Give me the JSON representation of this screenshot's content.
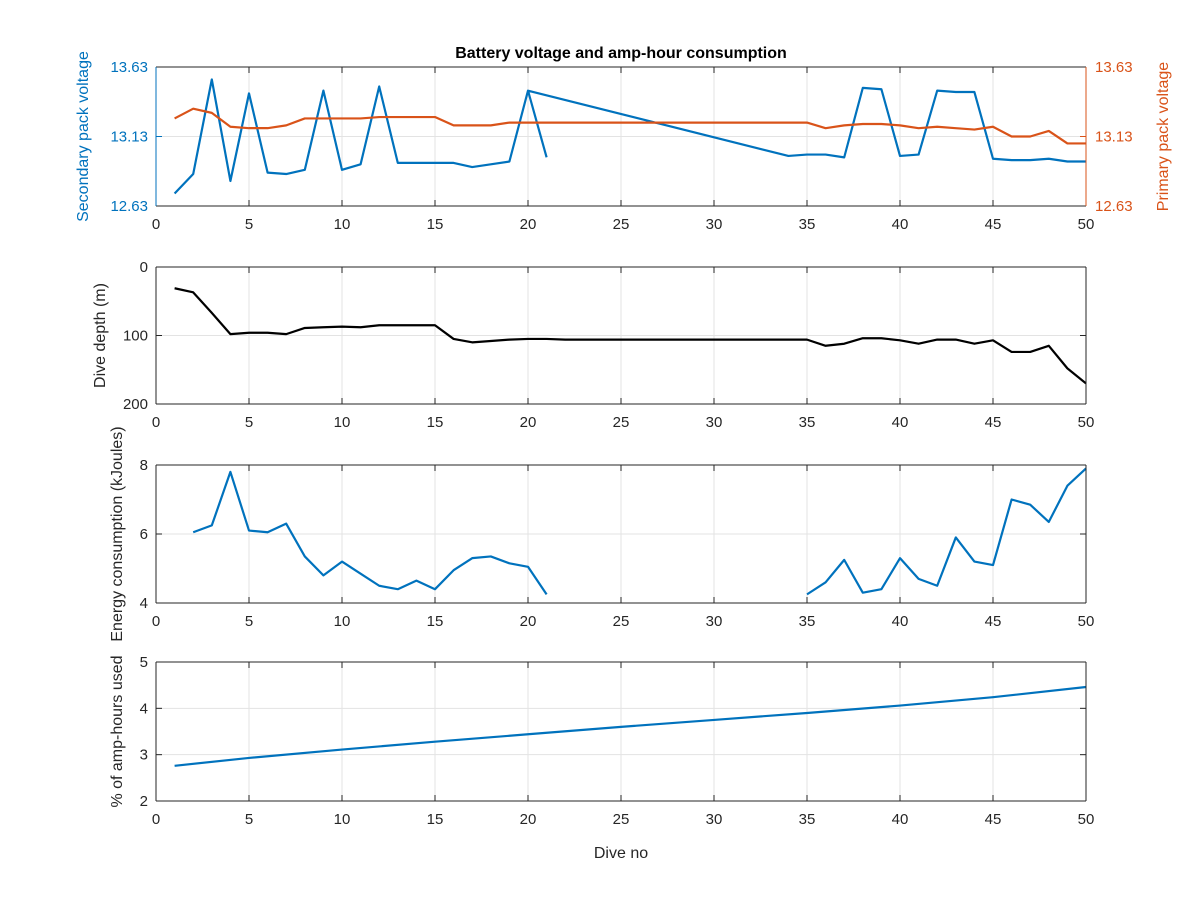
{
  "chart_data": [
    {
      "type": "line",
      "title": "Battery voltage and amp-hour consumption",
      "xlabel": "",
      "ylabel": "Secondary pack voltage",
      "ylabel_right": "Primary pack voltage",
      "xlim": [
        0,
        50
      ],
      "ylim": [
        12.63,
        13.63
      ],
      "ylim_right": [
        12.63,
        13.63
      ],
      "xticks": [
        "0",
        "5",
        "10",
        "15",
        "20",
        "25",
        "30",
        "35",
        "40",
        "45",
        "50"
      ],
      "yticks": [
        "12.63",
        "13.13",
        "13.63"
      ],
      "yticks_right": [
        "12.63",
        "13.13",
        "13.63"
      ],
      "grid": true,
      "colors": {
        "left": "#0072BD",
        "right": "#D95319"
      },
      "series": [
        {
          "axis": "left",
          "x": [
            1,
            2,
            3,
            4,
            5,
            6,
            7,
            8,
            9,
            10,
            11,
            12,
            13,
            14,
            15,
            16,
            17,
            18,
            19,
            20,
            21,
            null,
            20,
            34,
            35,
            36,
            37,
            38,
            39,
            40,
            41,
            42,
            43,
            44,
            45,
            46,
            47,
            48,
            49,
            50
          ],
          "values": [
            12.72,
            12.86,
            13.54,
            12.81,
            13.44,
            12.87,
            12.86,
            12.89,
            13.46,
            12.89,
            12.93,
            13.49,
            12.94,
            12.94,
            12.94,
            12.94,
            12.91,
            12.93,
            12.95,
            13.46,
            12.98,
            null,
            13.46,
            12.99,
            13.0,
            13.0,
            12.98,
            13.48,
            13.47,
            12.99,
            13.0,
            13.46,
            13.45,
            13.45,
            12.97,
            12.96,
            12.96,
            12.97,
            12.95,
            12.95
          ]
        },
        {
          "axis": "right",
          "x": [
            1,
            2,
            3,
            4,
            5,
            6,
            7,
            8,
            9,
            10,
            11,
            12,
            13,
            14,
            15,
            16,
            17,
            18,
            19,
            20,
            21,
            25,
            30,
            35,
            36,
            37,
            38,
            39,
            40,
            41,
            42,
            43,
            44,
            45,
            46,
            47,
            48,
            49,
            50
          ],
          "values": [
            13.26,
            13.33,
            13.3,
            13.2,
            13.19,
            13.19,
            13.21,
            13.26,
            13.26,
            13.26,
            13.26,
            13.27,
            13.27,
            13.27,
            13.27,
            13.21,
            13.21,
            13.21,
            13.23,
            13.23,
            13.23,
            13.23,
            13.23,
            13.23,
            13.19,
            13.21,
            13.22,
            13.22,
            13.21,
            13.19,
            13.2,
            13.19,
            13.18,
            13.2,
            13.13,
            13.13,
            13.17,
            13.08,
            13.08
          ]
        }
      ]
    },
    {
      "type": "line",
      "xlabel": "",
      "ylabel": "Dive depth (m)",
      "xlim": [
        0,
        50
      ],
      "ylim": [
        0,
        200
      ],
      "y_reversed": true,
      "xticks": [
        "0",
        "5",
        "10",
        "15",
        "20",
        "25",
        "30",
        "35",
        "40",
        "45",
        "50"
      ],
      "yticks": [
        "0",
        "100",
        "200"
      ],
      "grid": true,
      "colors": {
        "line": "#000000"
      },
      "series": [
        {
          "x": [
            1,
            2,
            3,
            4,
            5,
            6,
            7,
            8,
            9,
            10,
            11,
            12,
            13,
            14,
            15,
            16,
            17,
            18,
            19,
            20,
            21,
            22,
            25,
            30,
            35,
            36,
            37,
            38,
            39,
            40,
            41,
            42,
            43,
            44,
            45,
            46,
            47,
            48,
            49,
            50
          ],
          "values": [
            31,
            37,
            67,
            98,
            96,
            96,
            98,
            89,
            88,
            87,
            88,
            85,
            85,
            85,
            85,
            105,
            110,
            108,
            106,
            105,
            105,
            106,
            106,
            106,
            106,
            115,
            112,
            104,
            104,
            107,
            112,
            106,
            106,
            112,
            107,
            124,
            124,
            115,
            148,
            170
          ]
        }
      ]
    },
    {
      "type": "line",
      "xlabel": "",
      "ylabel": "Energy consumption (kJoules)",
      "xlim": [
        0,
        50
      ],
      "ylim": [
        4,
        8
      ],
      "xticks": [
        "0",
        "5",
        "10",
        "15",
        "20",
        "25",
        "30",
        "35",
        "40",
        "45",
        "50"
      ],
      "yticks": [
        "4",
        "6",
        "8"
      ],
      "grid": true,
      "colors": {
        "line": "#0072BD"
      },
      "series": [
        {
          "x": [
            2,
            3,
            4,
            5,
            6,
            7,
            8,
            9,
            10,
            11,
            12,
            13,
            14,
            15,
            16,
            17,
            18,
            19,
            20,
            21,
            null,
            35,
            36,
            37,
            38,
            39,
            40,
            41,
            42,
            43,
            44,
            45,
            46,
            47,
            48,
            49,
            50
          ],
          "values": [
            6.05,
            6.25,
            7.8,
            6.1,
            6.05,
            6.3,
            5.35,
            4.8,
            5.2,
            4.85,
            4.5,
            4.4,
            4.65,
            4.4,
            4.95,
            5.3,
            5.35,
            5.15,
            5.05,
            4.25,
            null,
            4.25,
            4.6,
            5.25,
            4.3,
            4.4,
            5.3,
            4.7,
            4.5,
            5.9,
            5.2,
            5.1,
            7.0,
            6.85,
            6.35,
            7.4,
            7.9
          ]
        }
      ]
    },
    {
      "type": "line",
      "xlabel": "Dive no",
      "ylabel": "% of amp-hours used",
      "xlim": [
        0,
        50
      ],
      "ylim": [
        2,
        5
      ],
      "xticks": [
        "0",
        "5",
        "10",
        "15",
        "20",
        "25",
        "30",
        "35",
        "40",
        "45",
        "50"
      ],
      "yticks": [
        "2",
        "3",
        "4",
        "5"
      ],
      "grid": true,
      "colors": {
        "line": "#0072BD"
      },
      "series": [
        {
          "x": [
            1,
            5,
            10,
            15,
            20,
            25,
            30,
            35,
            40,
            45,
            50
          ],
          "values": [
            2.76,
            2.93,
            3.11,
            3.28,
            3.44,
            3.6,
            3.75,
            3.9,
            4.06,
            4.24,
            4.46
          ]
        }
      ]
    }
  ]
}
